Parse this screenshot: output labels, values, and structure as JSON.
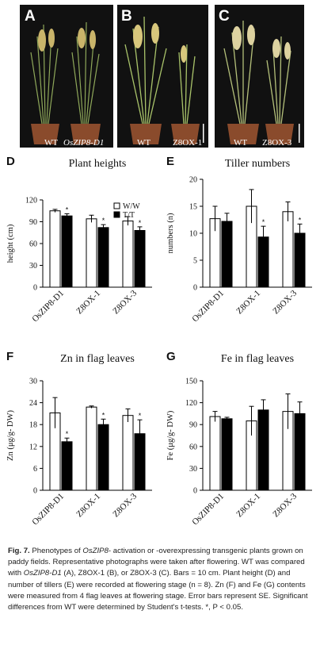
{
  "photos": [
    {
      "label": "A",
      "pot_labels": [
        "WT",
        "OsZIP8-D1"
      ]
    },
    {
      "label": "B",
      "pot_labels": [
        "WT",
        "Z8OX-1"
      ]
    },
    {
      "label": "C",
      "pot_labels": [
        "WT",
        "Z8OX-3"
      ]
    }
  ],
  "chart_data": [
    {
      "panel": "D",
      "type": "bar",
      "title": "Plant heights",
      "ylabel": "height (cm)",
      "ylim": [
        0,
        120
      ],
      "yticks": [
        0,
        30,
        60,
        90,
        120
      ],
      "categories": [
        "OsZIP8-D1",
        "Z8OX-1",
        "Z8OX-3"
      ],
      "series": [
        {
          "name": "W/W",
          "values": [
            105,
            94,
            91
          ],
          "errors": [
            2,
            5,
            6
          ]
        },
        {
          "name": "T/T",
          "values": [
            98,
            82,
            78
          ],
          "errors": [
            3,
            4,
            5
          ]
        }
      ],
      "significance": [
        "*",
        "*",
        "*"
      ],
      "legend": "top-right"
    },
    {
      "panel": "E",
      "type": "bar",
      "title": "Tiller numbers",
      "ylabel": "numbers (n)",
      "ylim": [
        0,
        20
      ],
      "yticks": [
        0,
        5,
        10,
        15,
        20
      ],
      "categories": [
        "OsZIP8-D1",
        "Z8OX-1",
        "Z8OX-3"
      ],
      "series": [
        {
          "values": [
            12.7,
            15.0,
            14.0
          ],
          "errors": [
            2.3,
            3.1,
            1.8
          ]
        },
        {
          "values": [
            12.2,
            9.3,
            10.0
          ],
          "errors": [
            1.5,
            2.0,
            1.7
          ]
        }
      ],
      "significance": [
        "",
        "*",
        "*"
      ]
    },
    {
      "panel": "F",
      "type": "bar",
      "title": "Zn in flag leaves",
      "ylabel": "Zn (μg/g- DW)",
      "ylim": [
        0,
        30
      ],
      "yticks": [
        0,
        6,
        12,
        18,
        24,
        30
      ],
      "categories": [
        "OsZIP8-D1",
        "Z8OX-1",
        "Z8OX-3"
      ],
      "series": [
        {
          "values": [
            21.2,
            22.8,
            20.5
          ],
          "errors": [
            4.2,
            0.3,
            1.8
          ]
        },
        {
          "values": [
            13.3,
            18.0,
            15.5
          ],
          "errors": [
            1.0,
            1.5,
            3.8
          ]
        }
      ],
      "significance": [
        "*",
        "*",
        "*"
      ]
    },
    {
      "panel": "G",
      "type": "bar",
      "title": "Fe in flag leaves",
      "ylabel": "Fe (μg/g- DW)",
      "ylim": [
        0,
        150
      ],
      "yticks": [
        0,
        30,
        60,
        90,
        120,
        150
      ],
      "categories": [
        "OsZIP8-D1",
        "Z8OX-1",
        "Z8OX-3"
      ],
      "series": [
        {
          "values": [
            101,
            95,
            108
          ],
          "errors": [
            7,
            20,
            24
          ]
        },
        {
          "values": [
            98,
            110,
            105
          ],
          "errors": [
            2,
            14,
            16
          ]
        }
      ],
      "significance": [
        "",
        "",
        ""
      ]
    }
  ],
  "caption": {
    "fig": "Fig. 7.",
    "text_1": " Phenotypes of ",
    "gene": "OsZIP8",
    "text_2": "- activation or -overexpressing transgenic plants grown on paddy fields. Representative photographs were taken after flowering. WT was compared with ",
    "line": "OsZIP8-D1",
    "text_3": " (A), Z8OX-1 (B), or Z8OX-3 (C). Bars = 10 cm. Plant height (D) and number of tillers (E) were recorded at flowering stage (n = 8). Zn (F) and Fe (G) contents were measured from 4 flag leaves at flowering stage. Error bars represent SE. Significant differences from WT were determined by Student's t-tests. *, P < 0.05."
  }
}
